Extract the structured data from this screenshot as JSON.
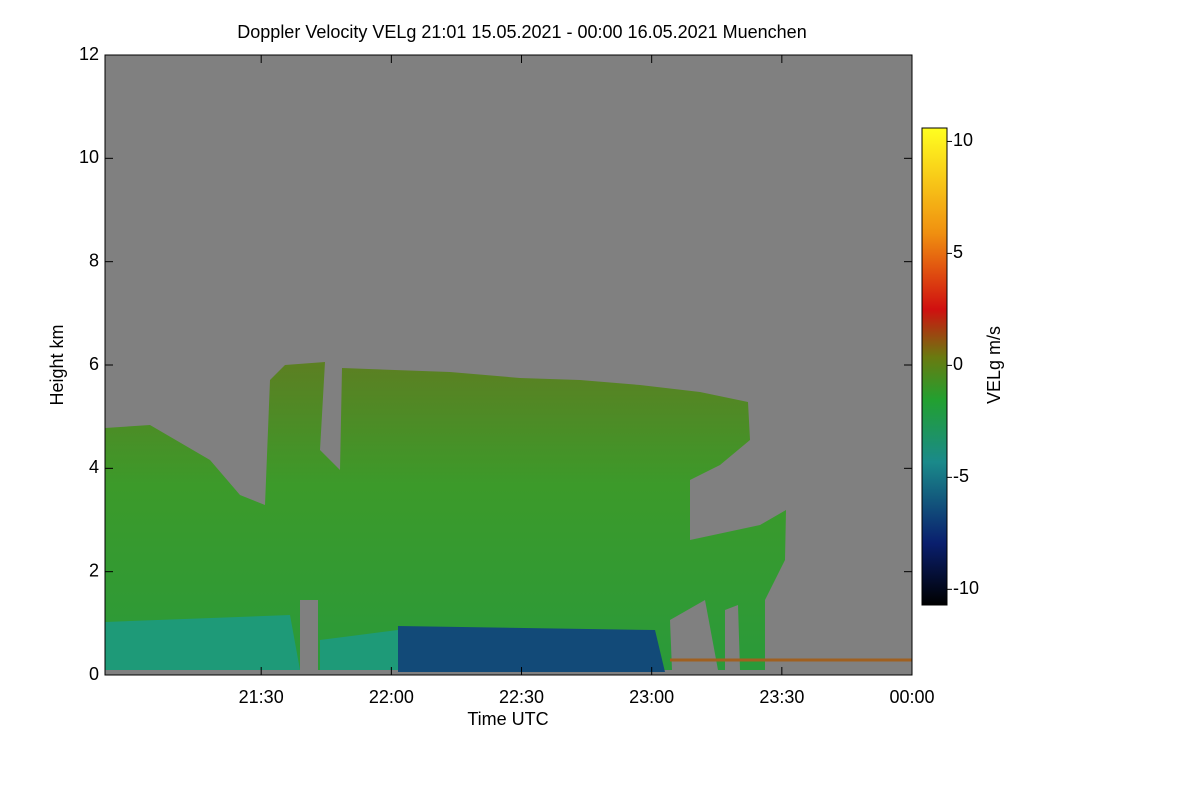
{
  "chart_data": {
    "type": "heatmap",
    "title": "Doppler Velocity VELg   21:01 15.05.2021 - 00:00 16.05.2021 Muenchen",
    "x_label": "Time UTC",
    "y_label": "Height km",
    "colorbar_label": "VELg m/s",
    "xlim": [
      -6,
      180
    ],
    "xticks": [
      {
        "value": 30,
        "label": "21:30"
      },
      {
        "value": 60,
        "label": "22:00"
      },
      {
        "value": 90,
        "label": "22:30"
      },
      {
        "value": 120,
        "label": "23:00"
      },
      {
        "value": 150,
        "label": "23:30"
      },
      {
        "value": 180,
        "label": "00:00"
      }
    ],
    "ylim": [
      0,
      12
    ],
    "yticks": [
      0,
      2,
      4,
      6,
      8,
      10,
      12
    ],
    "clim": [
      -10.7,
      10.6
    ],
    "cticks": [
      -10,
      -5,
      0,
      5,
      10
    ]
  }
}
